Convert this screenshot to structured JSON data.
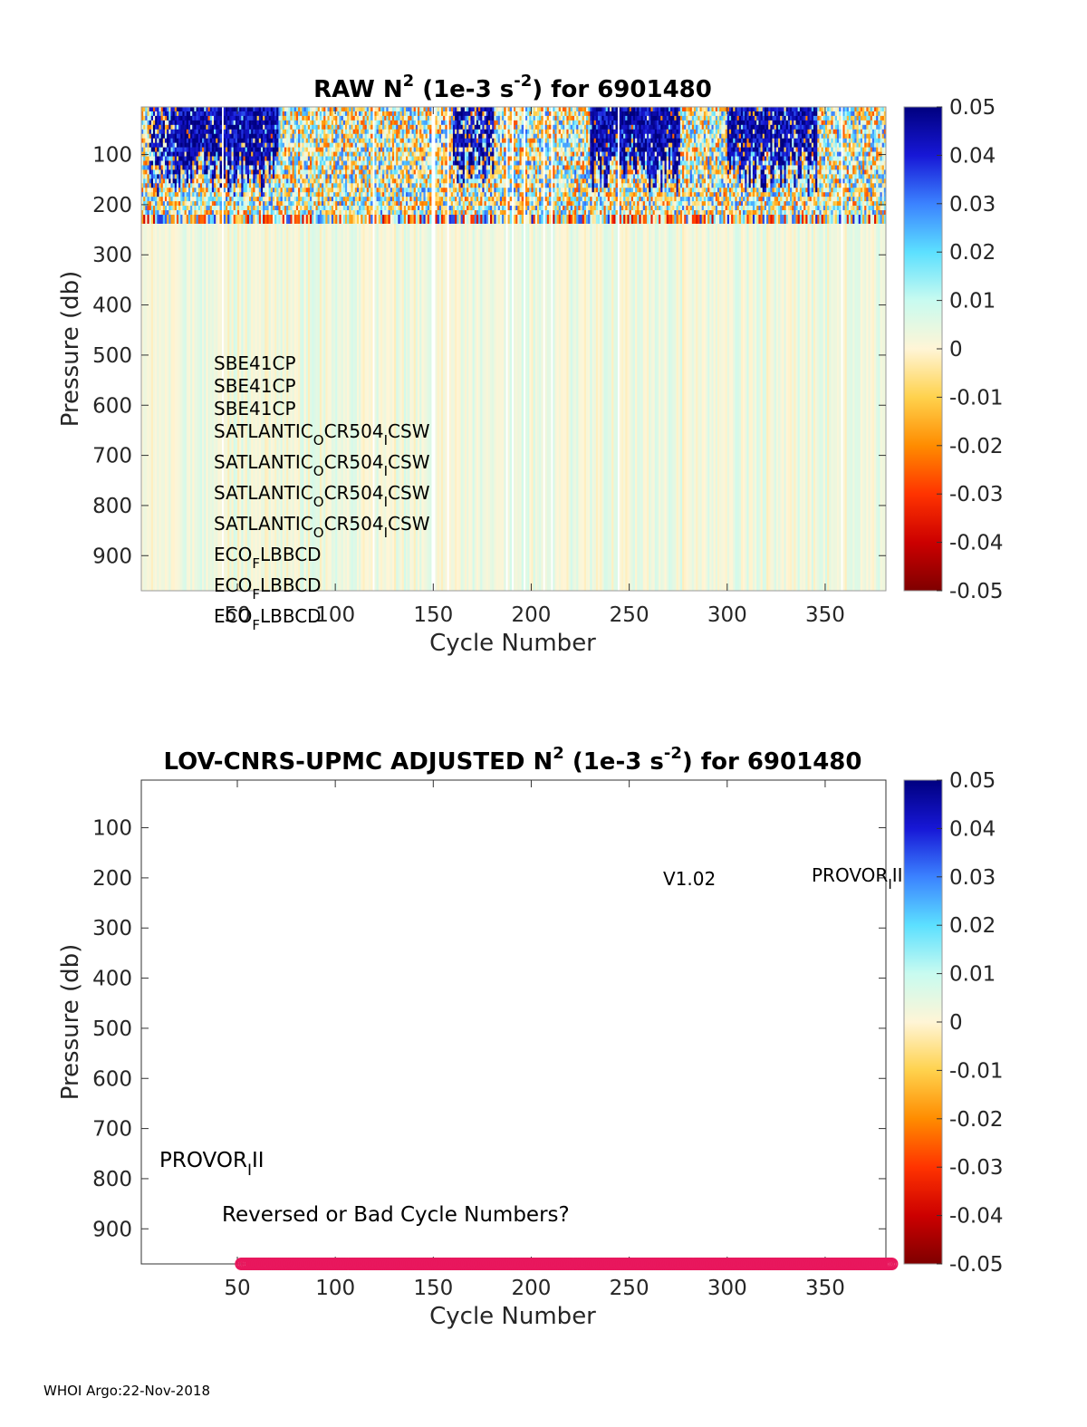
{
  "footer": "WHOI Argo:22-Nov-2018",
  "chart_data": [
    {
      "type": "heatmap",
      "title_prefix": "RAW N",
      "title_sup1": "2",
      "title_mid": " (1e-3 s",
      "title_sup2": "-2",
      "title_suffix": ") for 6901480",
      "xlabel": "Cycle Number",
      "ylabel": "Pressure (db)",
      "xlim": [
        1,
        381
      ],
      "ylim": [
        5,
        970
      ],
      "x_ticks": [
        50,
        100,
        150,
        200,
        250,
        300,
        350
      ],
      "y_ticks": [
        100,
        200,
        300,
        400,
        500,
        600,
        700,
        800,
        900
      ],
      "colorbar_ticks": [
        "0.05",
        "0.04",
        "0.03",
        "0.02",
        "0.01",
        "0",
        "-0.01",
        "-0.02",
        "-0.03",
        "-0.04",
        "-0.05"
      ],
      "clim": [
        -0.05,
        0.05
      ],
      "colormap": [
        "#7f0000",
        "#cc0000",
        "#ff3300",
        "#ff8c00",
        "#ffd24d",
        "#fff5d6",
        "#c8fbf0",
        "#5ce0ff",
        "#3b82ff",
        "#1717d6",
        "#00007f"
      ],
      "sensor_labels": [
        {
          "base": "SBE41CP",
          "sub": "",
          "tail": ""
        },
        {
          "base": "SBE41CP",
          "sub": "",
          "tail": ""
        },
        {
          "base": "SBE41CP",
          "sub": "",
          "tail": ""
        },
        {
          "base": "SATLANTIC",
          "sub": "O",
          "tail": "CR504",
          "sub2": "I",
          "tail2": "CSW"
        },
        {
          "base": "SATLANTIC",
          "sub": "O",
          "tail": "CR504",
          "sub2": "I",
          "tail2": "CSW"
        },
        {
          "base": "SATLANTIC",
          "sub": "O",
          "tail": "CR504",
          "sub2": "I",
          "tail2": "CSW"
        },
        {
          "base": "SATLANTIC",
          "sub": "O",
          "tail": "CR504",
          "sub2": "I",
          "tail2": "CSW"
        },
        {
          "base": "ECO",
          "sub": "F",
          "tail": "LBBCD"
        },
        {
          "base": "ECO",
          "sub": "F",
          "tail": "LBBCD"
        },
        {
          "base": "ECO",
          "sub": "F",
          "tail": "LBBCD"
        }
      ],
      "upper_layer_bottom_db": 220,
      "deep_value": 0.003
    },
    {
      "type": "scatter",
      "title_prefix": "LOV-CNRS-UPMC  ADJUSTED N",
      "title_sup1": "2",
      "title_mid": " (1e-3 s",
      "title_sup2": "-2",
      "title_suffix": ") for 6901480",
      "xlabel": "Cycle Number",
      "ylabel": "Pressure (db)",
      "xlim": [
        1,
        381
      ],
      "ylim": [
        5,
        970
      ],
      "x_ticks": [
        50,
        100,
        150,
        200,
        250,
        300,
        350
      ],
      "y_ticks": [
        100,
        200,
        300,
        400,
        500,
        600,
        700,
        800,
        900
      ],
      "colorbar_ticks": [
        "0.05",
        "0.04",
        "0.03",
        "0.02",
        "0.01",
        "0",
        "-0.01",
        "-0.02",
        "-0.03",
        "-0.04",
        "-0.05"
      ],
      "version_label": "V1.02",
      "platform_label_right": {
        "base": "PROVOR",
        "sub": "I",
        "tail": "II"
      },
      "platform_label_left": {
        "base": "PROVOR",
        "sub": "I",
        "tail": "II"
      },
      "warning": "Reversed or Bad Cycle Numbers?",
      "bad_cycle_marker_color": "#e8175d",
      "bad_cycle_range": [
        52,
        384
      ],
      "bad_cycle_pressure_db": 970
    }
  ]
}
